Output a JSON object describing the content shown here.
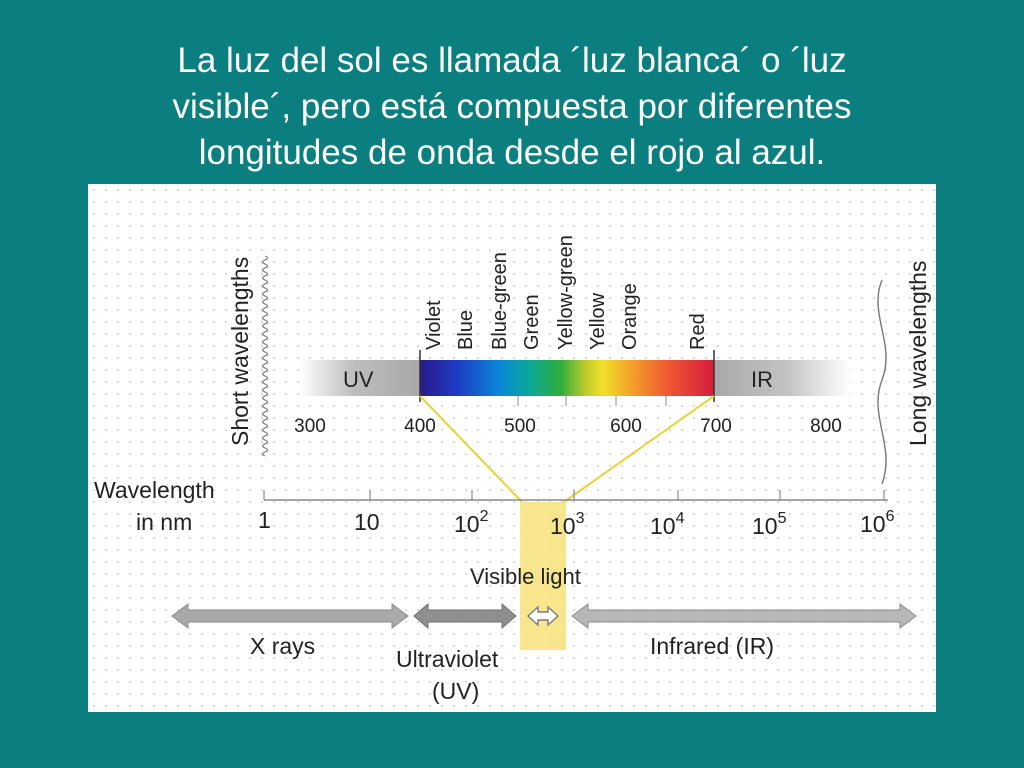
{
  "title_lines": [
    "La luz del sol es llamada ´luz blanca´ o ´luz",
    "visible´, pero está compuesta por diferentes",
    "longitudes de onda desde el rojo al azul."
  ],
  "diagram": {
    "short_wavelengths": "Short wavelengths",
    "long_wavelengths": "Long wavelengths",
    "colors": [
      "Violet",
      "Blue",
      "Blue-green",
      "Green",
      "Yellow-green",
      "Yellow",
      "Orange",
      "Red"
    ],
    "uv_label": "UV",
    "ir_label": "IR",
    "visible_ticks": [
      "300",
      "400",
      "500",
      "600",
      "700",
      "800"
    ],
    "axis_title_line1": "Wavelength",
    "axis_title_line2": "in nm",
    "log_ticks": [
      {
        "base": "1",
        "exp": ""
      },
      {
        "base": "10",
        "exp": ""
      },
      {
        "base": "10",
        "exp": "2"
      },
      {
        "base": "10",
        "exp": "3"
      },
      {
        "base": "10",
        "exp": "4"
      },
      {
        "base": "10",
        "exp": "5"
      },
      {
        "base": "10",
        "exp": "6"
      }
    ],
    "visible_light": "Visible light",
    "xrays": "X rays",
    "ultraviolet_line1": "Ultraviolet",
    "ultraviolet_line2": "(UV)",
    "infrared": "Infrared (IR)",
    "accent_yellow": "#f7e27a"
  }
}
